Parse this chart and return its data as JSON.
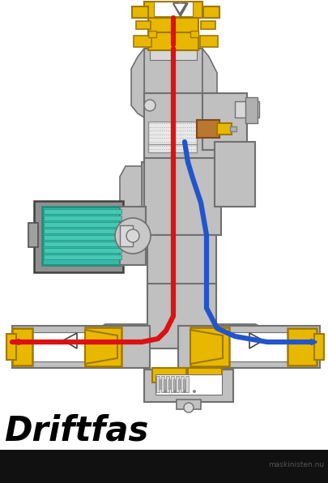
{
  "title": "Driftfas",
  "subtitle": "maskinisten.nu",
  "bg_color": "#ffffff",
  "bottom_bar_color": "#111111",
  "title_color": "#000000",
  "title_fontsize": 30,
  "body_color": "#c0c0c0",
  "body_edge": "#707070",
  "yellow_color": "#e8b800",
  "yellow_edge": "#a07800",
  "teal_color": "#38b8a8",
  "teal_dark": "#20907a",
  "gray_motor": "#909090",
  "gray_motor_edge": "#505050",
  "red_pipe": "#dd1111",
  "blue_pipe": "#2255cc",
  "bronze_color": "#b87830",
  "bronze_edge": "#804820",
  "white_color": "#ffffff",
  "light_gray": "#d8d8d8",
  "mid_gray": "#b0b0b0",
  "dark_gray": "#808080",
  "pipe_lw": 4.5,
  "fig_width": 4.06,
  "fig_height": 5.96
}
